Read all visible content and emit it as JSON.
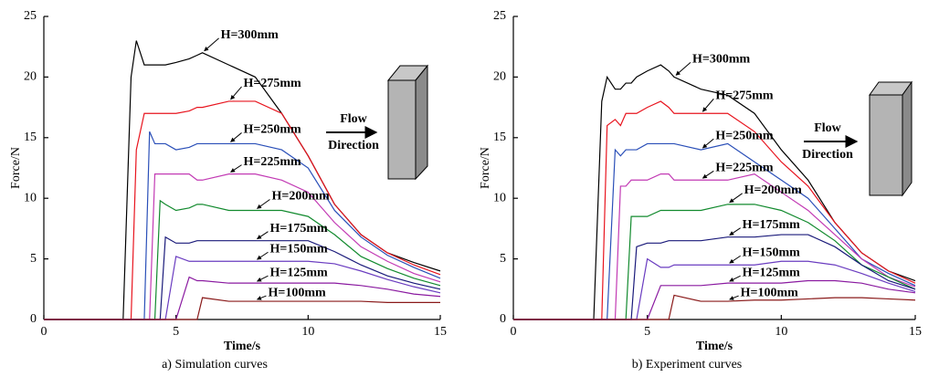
{
  "chart_data": [
    {
      "type": "line",
      "caption": "a) Simulation curves",
      "x_label": "Time/s",
      "y_label": "Force/N",
      "annotations": [
        "Flow",
        "Direction"
      ],
      "x": [
        0,
        3,
        3.3,
        3.5,
        3.8,
        4,
        4.2,
        4.4,
        4.6,
        5,
        5.5,
        5.8,
        6,
        7,
        8,
        9,
        10,
        11,
        12,
        13,
        14,
        15
      ],
      "xlim": [
        0,
        15
      ],
      "xticks": [
        0,
        5,
        10,
        15
      ],
      "ylim": [
        0,
        25
      ],
      "yticks": [
        0,
        5,
        10,
        15,
        20,
        25
      ],
      "series": [
        {
          "name": "H=300mm",
          "color": "#000000",
          "values": [
            0,
            0,
            20,
            23,
            21,
            21,
            21,
            21,
            21,
            21.2,
            21.5,
            21.8,
            22,
            21,
            20,
            17,
            13.5,
            9.5,
            7,
            5.5,
            4.7,
            4
          ]
        },
        {
          "name": "H=275mm",
          "color": "#e8141e",
          "values": [
            0,
            0,
            0,
            14,
            17,
            17,
            17,
            17,
            17,
            17,
            17.2,
            17.5,
            17.5,
            18,
            18,
            17,
            13.5,
            9.5,
            7,
            5.5,
            4.5,
            3.7
          ]
        },
        {
          "name": "H=250mm",
          "color": "#2a4fb8",
          "values": [
            0,
            0,
            0,
            0,
            0,
            15.5,
            14.5,
            14.5,
            14.5,
            14,
            14.2,
            14.5,
            14.5,
            14.5,
            14.5,
            14,
            12.5,
            9,
            6.8,
            5.3,
            4.3,
            3.4
          ]
        },
        {
          "name": "H=225mm",
          "color": "#c23ab4",
          "values": [
            0,
            0,
            0,
            0,
            0,
            0,
            12,
            12,
            12,
            12,
            12,
            11.5,
            11.5,
            12,
            12,
            11.5,
            10.5,
            8,
            6,
            4.8,
            3.8,
            3.1
          ]
        },
        {
          "name": "H=200mm",
          "color": "#128a2e",
          "values": [
            0,
            0,
            0,
            0,
            0,
            0,
            0,
            9.8,
            9.5,
            9,
            9.2,
            9.5,
            9.5,
            9,
            9,
            9,
            8.5,
            7,
            5.2,
            4.2,
            3.4,
            2.8
          ]
        },
        {
          "name": "H=175mm",
          "color": "#1a1a7a",
          "values": [
            0,
            0,
            0,
            0,
            0,
            0,
            0,
            0,
            6.8,
            6.3,
            6.3,
            6.5,
            6.5,
            6.5,
            6.5,
            6.5,
            6.5,
            5.6,
            4.5,
            3.6,
            3,
            2.5
          ]
        },
        {
          "name": "H=150mm",
          "color": "#6a3cc0",
          "values": [
            0,
            0,
            0,
            0,
            0,
            0,
            0,
            0,
            0,
            5.2,
            4.8,
            4.8,
            4.8,
            4.8,
            4.8,
            4.8,
            4.8,
            4.6,
            4,
            3.3,
            2.7,
            2.2
          ]
        },
        {
          "name": "H=125mm",
          "color": "#8a1aa0",
          "values": [
            0,
            0,
            0,
            0,
            0,
            0,
            0,
            0,
            0,
            0,
            3.5,
            3.2,
            3.2,
            3,
            3,
            3,
            3,
            3,
            2.8,
            2.5,
            2.1,
            1.9
          ]
        },
        {
          "name": "H=100mm",
          "color": "#8a1a1a",
          "values": [
            0,
            0,
            0,
            0,
            0,
            0,
            0,
            0,
            0,
            0,
            0,
            0,
            1.8,
            1.5,
            1.5,
            1.5,
            1.5,
            1.5,
            1.5,
            1.4,
            1.4,
            1.4
          ]
        }
      ]
    },
    {
      "type": "line",
      "caption": "b) Experiment curves",
      "x_label": "Time/s",
      "y_label": "Force/N",
      "annotations": [
        "Flow",
        "Direction"
      ],
      "x": [
        0,
        3,
        3.3,
        3.5,
        3.8,
        4,
        4.2,
        4.4,
        4.6,
        5,
        5.5,
        5.8,
        6,
        7,
        8,
        9,
        10,
        11,
        12,
        13,
        14,
        15
      ],
      "xlim": [
        0,
        15
      ],
      "xticks": [
        0,
        5,
        10,
        15
      ],
      "ylim": [
        0,
        25
      ],
      "yticks": [
        0,
        5,
        10,
        15,
        20,
        25
      ],
      "series": [
        {
          "name": "H=300mm",
          "color": "#000000",
          "values": [
            0,
            0,
            18,
            20,
            19,
            19,
            19.5,
            19.5,
            20,
            20.5,
            21,
            20.5,
            20,
            19,
            18.5,
            17,
            14,
            11.5,
            8,
            5.5,
            4,
            3.2
          ]
        },
        {
          "name": "H=275mm",
          "color": "#e8141e",
          "values": [
            0,
            0,
            0,
            16,
            16.5,
            16,
            17,
            17,
            17,
            17.5,
            18,
            17.5,
            17,
            17,
            17,
            15.5,
            13,
            11,
            8,
            5.5,
            4,
            3
          ]
        },
        {
          "name": "H=250mm",
          "color": "#2a4fb8",
          "values": [
            0,
            0,
            0,
            0,
            14,
            13.5,
            14,
            14,
            14,
            14.5,
            14.5,
            14.5,
            14.5,
            14,
            14.5,
            13,
            11.5,
            10,
            7.5,
            5,
            3.8,
            2.8
          ]
        },
        {
          "name": "H=225mm",
          "color": "#c23ab4",
          "values": [
            0,
            0,
            0,
            0,
            0,
            11,
            11,
            11.5,
            11.5,
            11.5,
            12,
            12,
            11.5,
            11.5,
            11.5,
            12,
            10.5,
            9,
            7,
            5,
            3.5,
            2.7
          ]
        },
        {
          "name": "H=200mm",
          "color": "#128a2e",
          "values": [
            0,
            0,
            0,
            0,
            0,
            0,
            0,
            8.5,
            8.5,
            8.5,
            9,
            9,
            9,
            9,
            9.5,
            9.5,
            9,
            8,
            6.5,
            4.5,
            3.5,
            2.5
          ]
        },
        {
          "name": "H=175mm",
          "color": "#1a1a7a",
          "values": [
            0,
            0,
            0,
            0,
            0,
            0,
            0,
            0,
            6,
            6.3,
            6.3,
            6.5,
            6.5,
            6.5,
            6.8,
            6.8,
            7,
            7,
            6,
            4.5,
            3.2,
            2.5
          ]
        },
        {
          "name": "H=150mm",
          "color": "#6a3cc0",
          "values": [
            0,
            0,
            0,
            0,
            0,
            0,
            0,
            0,
            0,
            5,
            4.3,
            4.3,
            4.5,
            4.5,
            4.5,
            4.5,
            4.8,
            4.8,
            4.5,
            3.8,
            3,
            2.3
          ]
        },
        {
          "name": "H=125mm",
          "color": "#8a1aa0",
          "values": [
            0,
            0,
            0,
            0,
            0,
            0,
            0,
            0,
            0,
            0,
            2.8,
            2.8,
            2.8,
            2.8,
            3,
            3,
            3,
            3.2,
            3.2,
            3,
            2.5,
            2.2
          ]
        },
        {
          "name": "H=100mm",
          "color": "#8a1a1a",
          "values": [
            0,
            0,
            0,
            0,
            0,
            0,
            0,
            0,
            0,
            0,
            0,
            0,
            2,
            1.5,
            1.5,
            1.6,
            1.6,
            1.7,
            1.8,
            1.8,
            1.7,
            1.6
          ]
        }
      ]
    }
  ]
}
